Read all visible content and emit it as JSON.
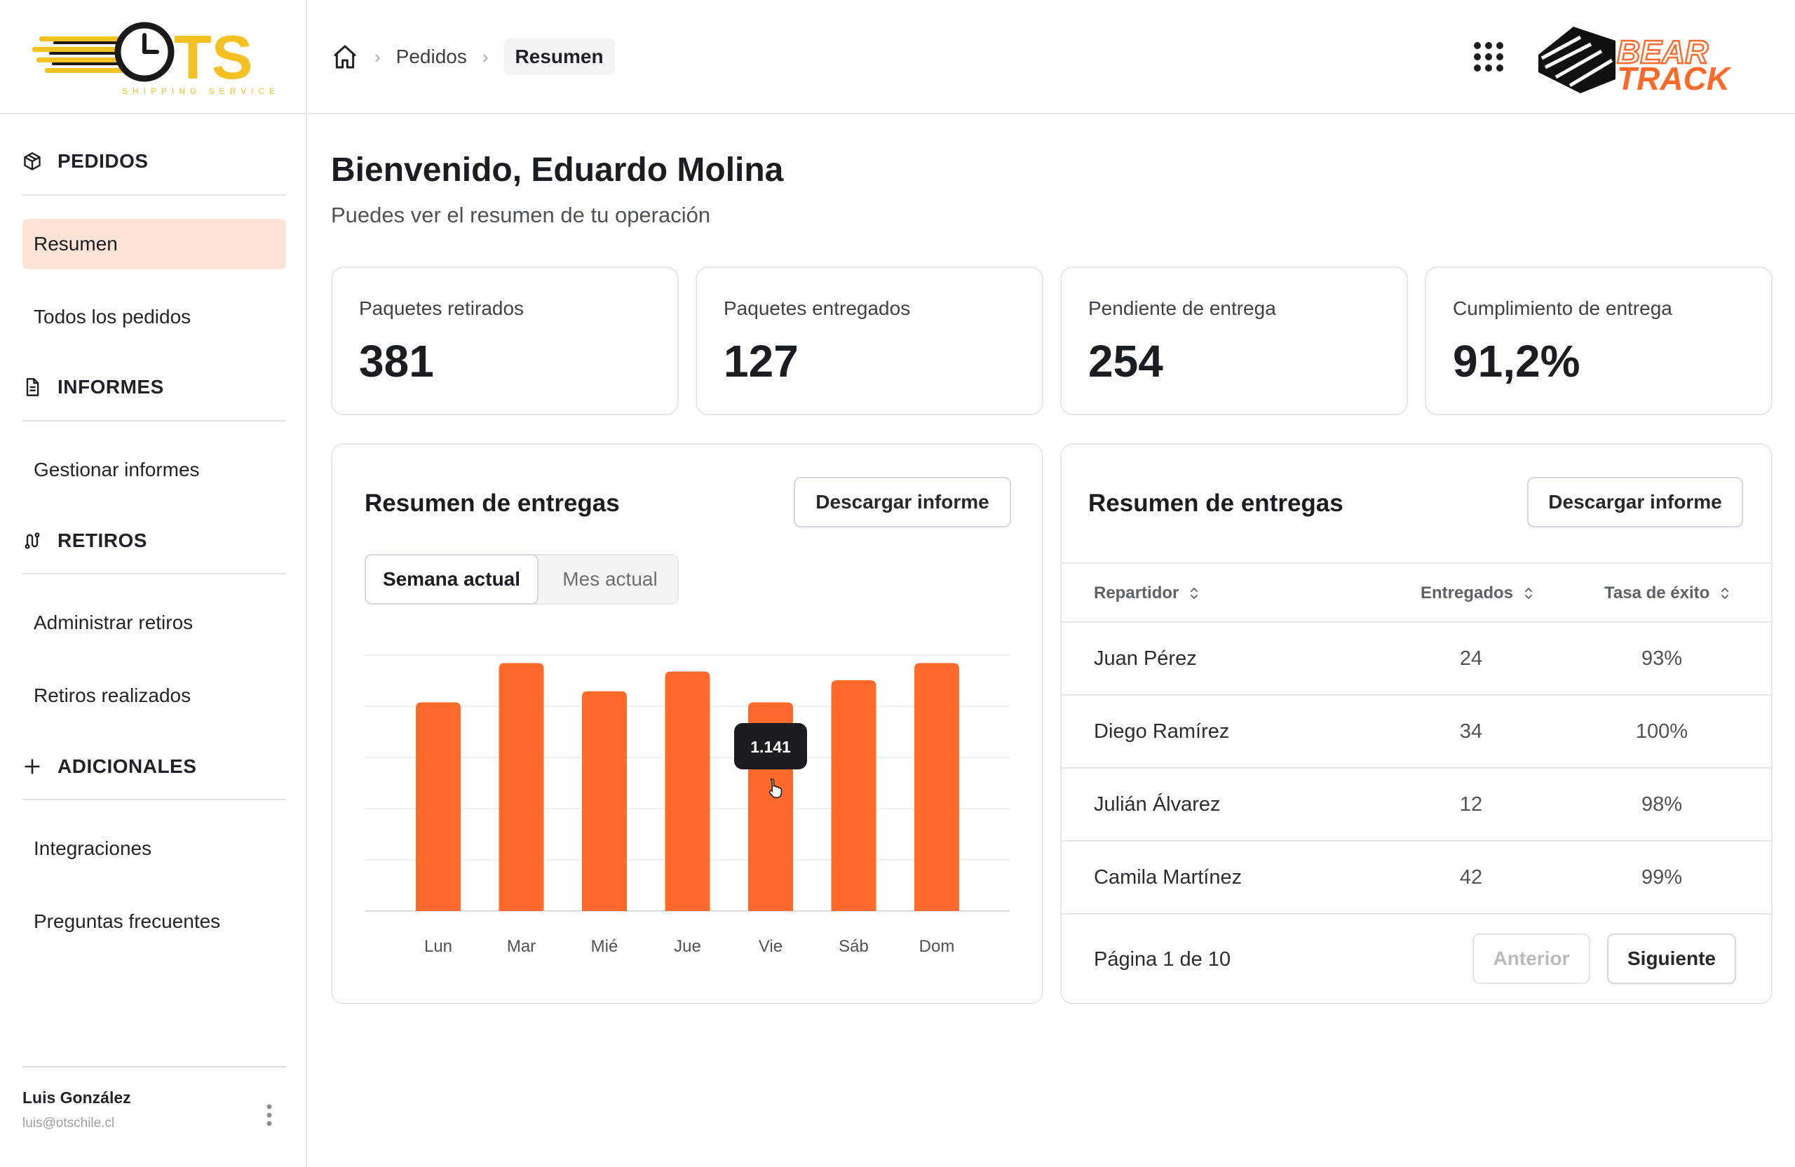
{
  "brand": {
    "ots_text": "TS",
    "ots_tagline": "SHIPPING SERVICES",
    "bear_line1": "BEAR",
    "bear_line2": "TRACK"
  },
  "colors": {
    "accent": "#ff6a2b",
    "accent_light": "#fde4d7",
    "ots_yellow": "#f5c022",
    "dark": "#1f2329"
  },
  "sidebar": {
    "sections": [
      {
        "icon": "box-icon",
        "title": "PEDIDOS",
        "items": [
          "Resumen",
          "Todos los pedidos"
        ]
      },
      {
        "icon": "document-icon",
        "title": "INFORMES",
        "items": [
          "Gestionar informes"
        ]
      },
      {
        "icon": "route-icon",
        "title": "RETIROS",
        "items": [
          "Administrar retiros",
          "Retiros realizados"
        ]
      },
      {
        "icon": "plus-icon",
        "title": "ADICIONALES",
        "items": [
          "Integraciones",
          "Preguntas frecuentes"
        ]
      }
    ],
    "active_item": "Resumen",
    "user": {
      "name": "Luis González",
      "email": "luis@otschile.cl"
    }
  },
  "breadcrumb": {
    "items": [
      "Pedidos",
      "Resumen"
    ]
  },
  "header": {
    "title": "Bienvenido, Eduardo Molina",
    "subtitle": "Puedes ver el resumen de tu operación"
  },
  "kpis": [
    {
      "label": "Paquetes retirados",
      "value": "381"
    },
    {
      "label": "Paquetes entregados",
      "value": "127"
    },
    {
      "label": "Pendiente de entrega",
      "value": "254"
    },
    {
      "label": "Cumplimiento de entrega",
      "value": "91,2%"
    }
  ],
  "chart_card": {
    "title": "Resumen de entregas",
    "download_label": "Descargar informe",
    "tabs": [
      "Semana actual",
      "Mes actual"
    ],
    "active_tab": "Semana actual",
    "tooltip": "1.141"
  },
  "chart_data": {
    "type": "bar",
    "categories": [
      "Lun",
      "Mar",
      "Mié",
      "Jue",
      "Vie",
      "Sáb",
      "Dom"
    ],
    "values": [
      1141,
      1356,
      1202,
      1310,
      1141,
      1262,
      1356
    ],
    "ylim": [
      0,
      1400
    ],
    "grid": true,
    "color": "#ff6a2b",
    "tooltip_index": 4,
    "title": "",
    "xlabel": "",
    "ylabel": ""
  },
  "table_card": {
    "title": "Resumen de entregas",
    "download_label": "Descargar informe",
    "columns": [
      "Repartidor",
      "Entregados",
      "Tasa de éxito"
    ],
    "rows": [
      {
        "name": "Juan Pérez",
        "delivered": "24",
        "rate": "93%"
      },
      {
        "name": "Diego Ramírez",
        "delivered": "34",
        "rate": "100%"
      },
      {
        "name": "Julián Álvarez",
        "delivered": "12",
        "rate": "98%"
      },
      {
        "name": "Camila Martínez",
        "delivered": "42",
        "rate": "99%"
      }
    ],
    "pagination": {
      "text": "Página 1 de 10",
      "prev": "Anterior",
      "next": "Siguiente"
    }
  }
}
